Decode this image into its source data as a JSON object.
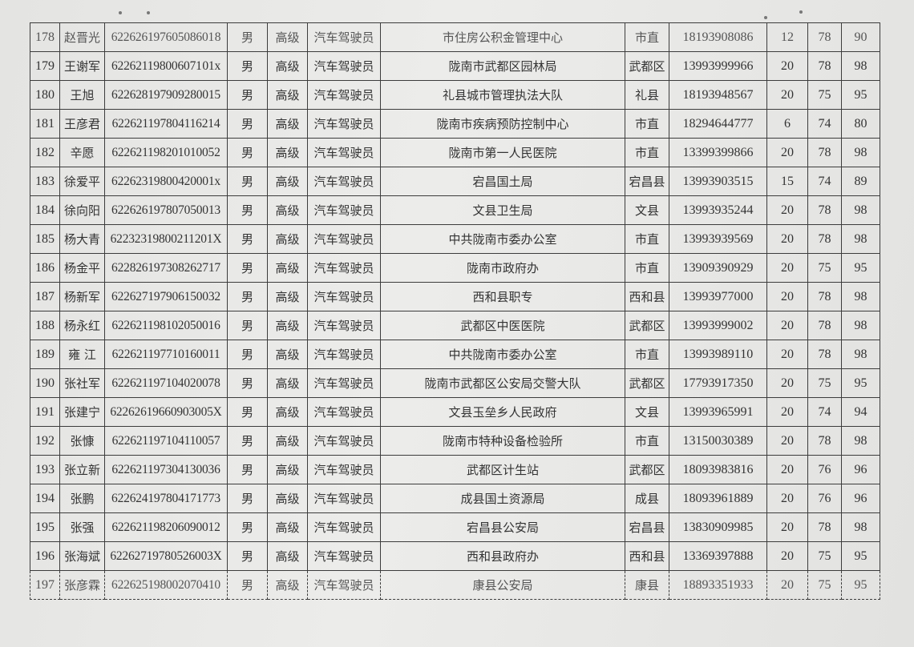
{
  "rows": [
    [
      "178",
      "赵晋光",
      "62262619760508601 8",
      "男",
      "高级",
      "汽车驾驶员",
      "市住房公积金管理中心",
      "市直",
      "18193908086",
      "12",
      "78",
      "90"
    ],
    [
      "179",
      "王谢军",
      "622621198006071 01x",
      "男",
      "高级",
      "汽车驾驶员",
      "陇南市武都区园林局",
      "武都区",
      "13993999966",
      "20",
      "78",
      "98"
    ],
    [
      "180",
      "王旭",
      "622628197909280015",
      "男",
      "高级",
      "汽车驾驶员",
      "礼县城市管理执法大队",
      "礼县",
      "18193948567",
      "20",
      "75",
      "95"
    ],
    [
      "181",
      "王彦君",
      "622621197804116214",
      "男",
      "高级",
      "汽车驾驶员",
      "陇南市疾病预防控制中心",
      "市直",
      "18294644777",
      "6",
      "74",
      "80"
    ],
    [
      "182",
      "辛愿",
      "622621198201010052",
      "男",
      "高级",
      "汽车驾驶员",
      "陇南市第一人民医院",
      "市直",
      "13399399866",
      "20",
      "78",
      "98"
    ],
    [
      "183",
      "徐爱平",
      "62262319800420001x",
      "男",
      "高级",
      "汽车驾驶员",
      "宕昌国土局",
      "宕昌县",
      "13993903515",
      "15",
      "74",
      "89"
    ],
    [
      "184",
      "徐向阳",
      "622626197807050013",
      "男",
      "高级",
      "汽车驾驶员",
      "文县卫生局",
      "文县",
      "13993935244",
      "20",
      "78",
      "98"
    ],
    [
      "185",
      "杨大青",
      "62232319800211201X",
      "男",
      "高级",
      "汽车驾驶员",
      "中共陇南市委办公室",
      "市直",
      "13993939569",
      "20",
      "78",
      "98"
    ],
    [
      "186",
      "杨金平",
      "622826197308262717",
      "男",
      "高级",
      "汽车驾驶员",
      "陇南市政府办",
      "市直",
      "13909390929",
      "20",
      "75",
      "95"
    ],
    [
      "187",
      "杨新军",
      "622627197906150032",
      "男",
      "高级",
      "汽车驾驶员",
      "西和县职专",
      "西和县",
      "13993977000",
      "20",
      "78",
      "98"
    ],
    [
      "188",
      "杨永红",
      "622621198102050016",
      "男",
      "高级",
      "汽车驾驶员",
      "武都区中医医院",
      "武都区",
      "13993999002",
      "20",
      "78",
      "98"
    ],
    [
      "189",
      "雍 江",
      "622621197710160011",
      "男",
      "高级",
      "汽车驾驶员",
      "中共陇南市委办公室",
      "市直",
      "13993989110",
      "20",
      "78",
      "98"
    ],
    [
      "190",
      "张社军",
      "622621197104020078",
      "男",
      "高级",
      "汽车驾驶员",
      "陇南市武都区公安局交警大队",
      "武都区",
      "17793917350",
      "20",
      "75",
      "95"
    ],
    [
      "191",
      "张建宁",
      "62262619660903005X",
      "男",
      "高级",
      "汽车驾驶员",
      "文县玉垒乡人民政府",
      "文县",
      "13993965991",
      "20",
      "74",
      "94"
    ],
    [
      "192",
      "张慷",
      "622621197104110057",
      "男",
      "高级",
      "汽车驾驶员",
      "陇南市特种设备检验所",
      "市直",
      "13150030389",
      "20",
      "78",
      "98"
    ],
    [
      "193",
      "张立新",
      "622621197304130036",
      "男",
      "高级",
      "汽车驾驶员",
      "武都区计生站",
      "武都区",
      "18093983816",
      "20",
      "76",
      "96"
    ],
    [
      "194",
      "张鹏",
      "622624197804171773",
      "男",
      "高级",
      "汽车驾驶员",
      "成县国土资源局",
      "成县",
      "18093961889",
      "20",
      "76",
      "96"
    ],
    [
      "195",
      "张强",
      "622621198206090012",
      "男",
      "高级",
      "汽车驾驶员",
      "宕昌县公安局",
      "宕昌县",
      "13830909985",
      "20",
      "78",
      "98"
    ],
    [
      "196",
      "张海斌",
      "62262719780526003X",
      "男",
      "高级",
      "汽车驾驶员",
      "西和县政府办",
      "西和县",
      "13369397888",
      "20",
      "75",
      "95"
    ],
    [
      "197",
      "张彦霖",
      "622625198002070410",
      "男",
      "高级",
      "汽车驾驶员",
      "康县公安局",
      "康县",
      "18893351933",
      "20",
      "75",
      "95"
    ]
  ]
}
